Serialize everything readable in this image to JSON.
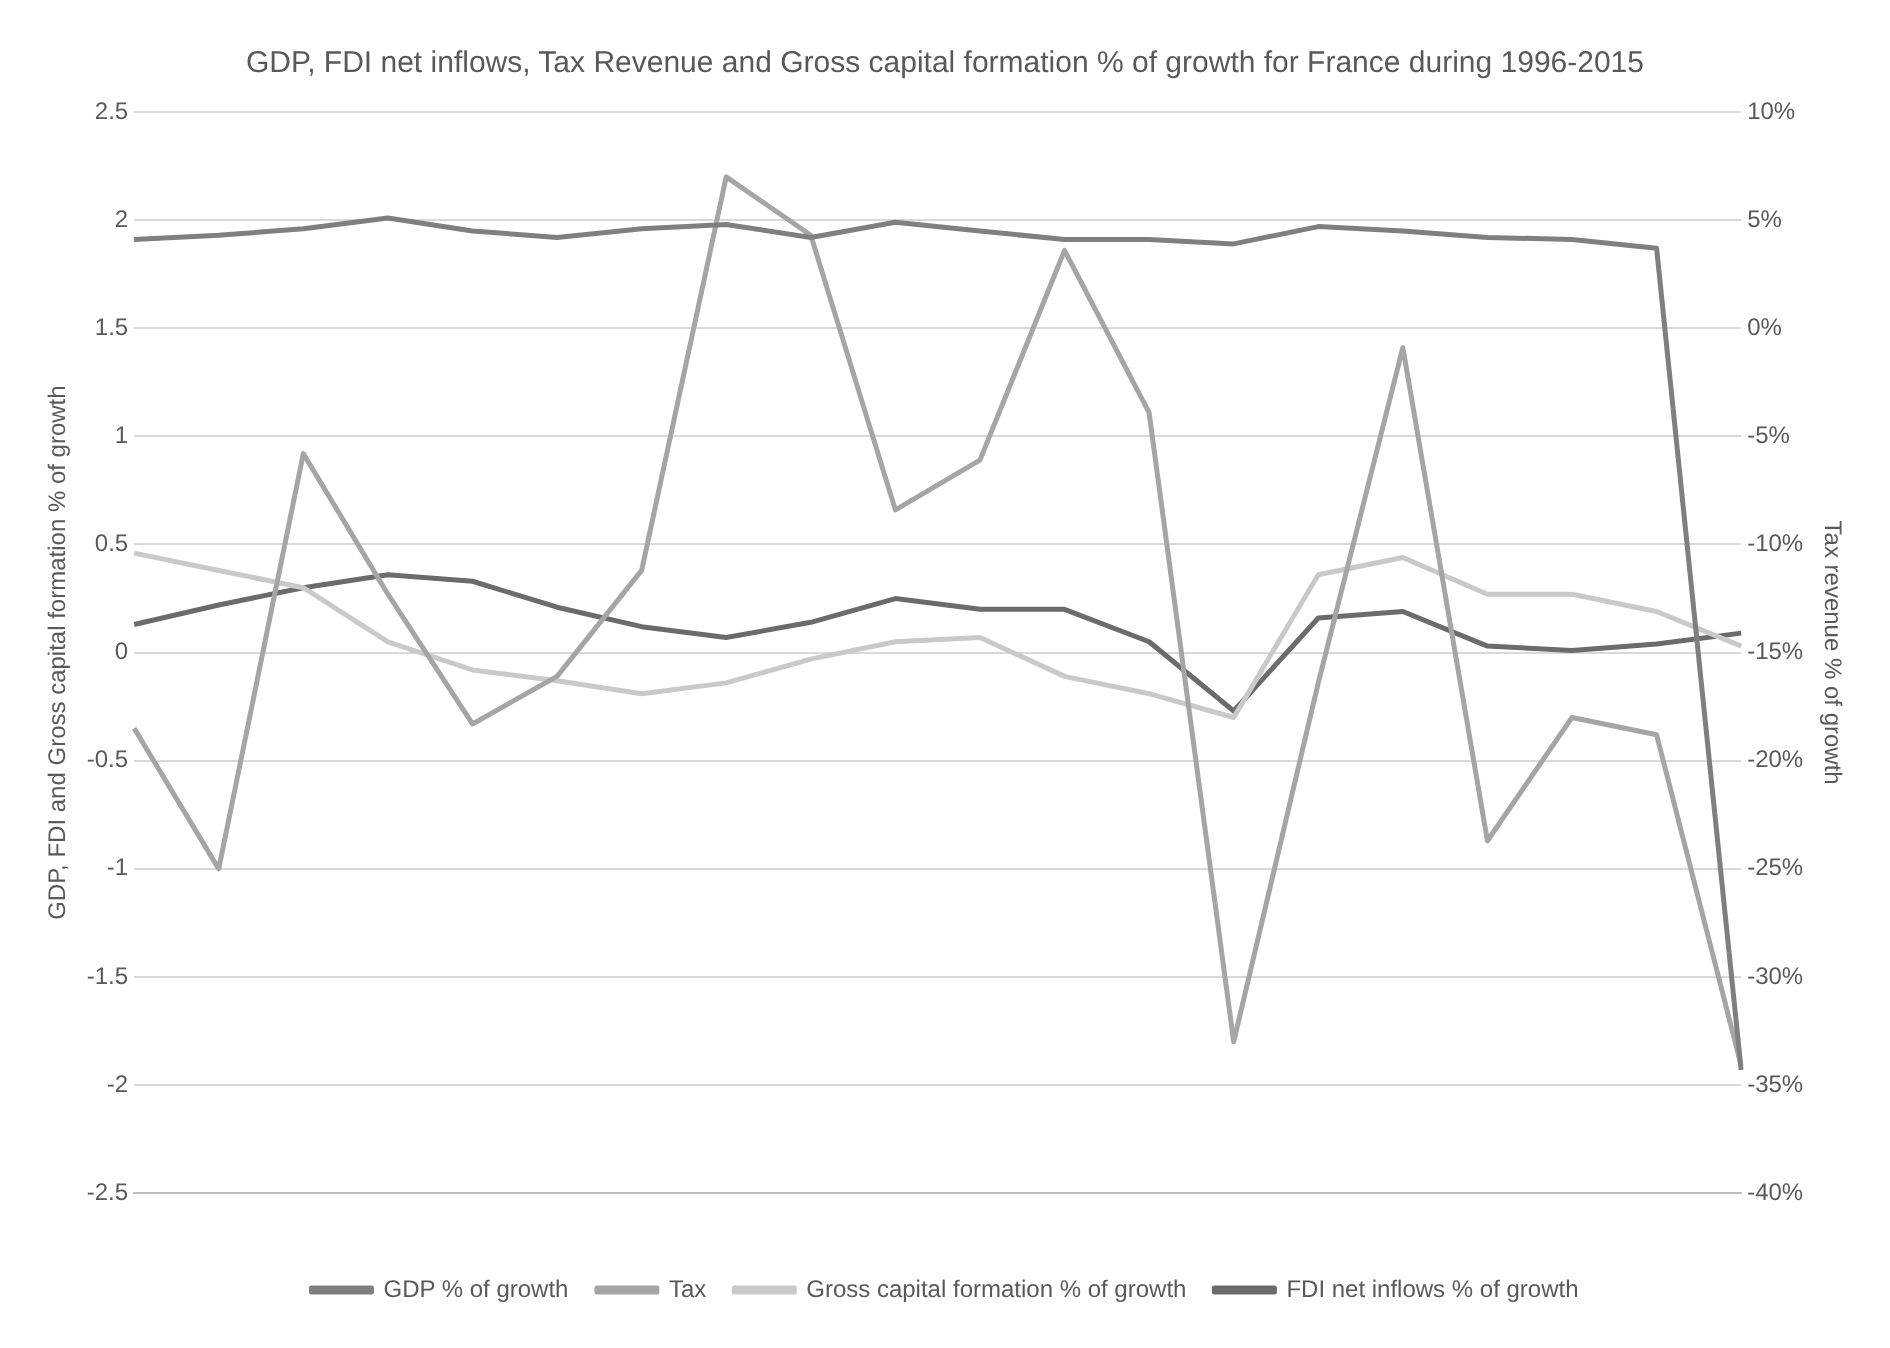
{
  "chart_data": {
    "type": "line",
    "title": "GDP, FDI net inflows, Tax Revenue and Gross capital formation % of growth for France during 1996-2015",
    "ylabel": "GDP, FDI and Gross capital formation % of growth",
    "y2label": "Tax revenue % of growth",
    "categories": [
      null,
      null,
      null,
      null,
      null,
      null,
      null,
      null,
      null,
      null,
      null,
      null,
      null,
      null,
      null,
      null,
      null,
      null,
      null,
      null
    ],
    "series": [
      {
        "name": "GDP % of growth",
        "color": "#7f7f7f",
        "values": [
          1.91,
          1.93,
          1.96,
          2.01,
          1.95,
          1.92,
          1.96,
          1.98,
          1.92,
          1.99,
          1.95,
          1.91,
          1.91,
          1.89,
          1.97,
          1.95,
          1.92,
          1.91,
          1.87,
          -1.93
        ]
      },
      {
        "name": "Tax",
        "color": "#a5a5a5",
        "axis": "y2",
        "values": [
          -18.5,
          -25,
          -5.8,
          -12.3,
          -18.3,
          -16.1,
          -11.2,
          7,
          4.3,
          -8.4,
          -6.1,
          3.6,
          -3.9,
          -33,
          -16.4,
          -0.9,
          -23.7,
          -18,
          -18.8,
          -34.1
        ]
      },
      {
        "name": "Gross capital formation % of growth",
        "color": "#c9c9c9",
        "values": [
          0.46,
          0.38,
          0.3,
          0.05,
          -0.08,
          -0.13,
          -0.19,
          -0.14,
          -0.03,
          0.05,
          0.07,
          -0.11,
          -0.19,
          -0.3,
          0.36,
          0.44,
          0.27,
          0.27,
          0.19,
          0.03
        ]
      },
      {
        "name": "FDI net inflows % of growth",
        "color": "#6b6b6b",
        "values": [
          0.13,
          0.22,
          0.3,
          0.36,
          0.33,
          0.21,
          0.12,
          0.07,
          0.14,
          0.25,
          0.2,
          0.2,
          0.05,
          -0.27,
          0.16,
          0.19,
          0.03,
          0.01,
          0.04,
          0.09
        ]
      }
    ],
    "ylim": [
      -2.5,
      2.5
    ],
    "yticks": [
      -2.5,
      -2,
      -1.5,
      -1,
      -0.5,
      0,
      0.5,
      1,
      1.5,
      2,
      2.5
    ],
    "y2lim": [
      -40,
      10
    ],
    "y2ticks": [
      {
        "value": -40,
        "label": "-40%"
      },
      {
        "value": -35,
        "label": "-35%"
      },
      {
        "value": -30,
        "label": "-30%"
      },
      {
        "value": -25,
        "label": "-25%"
      },
      {
        "value": -20,
        "label": "-20%"
      },
      {
        "value": -15,
        "label": "-15%"
      },
      {
        "value": -10,
        "label": "-10%"
      },
      {
        "value": -5,
        "label": "-5%"
      },
      {
        "value": 0,
        "label": "0%"
      },
      {
        "value": 5,
        "label": "5%"
      },
      {
        "value": 10,
        "label": "10%"
      }
    ],
    "grid": "y",
    "legend": "bottom",
    "marker": "none",
    "line_style": "solid"
  }
}
